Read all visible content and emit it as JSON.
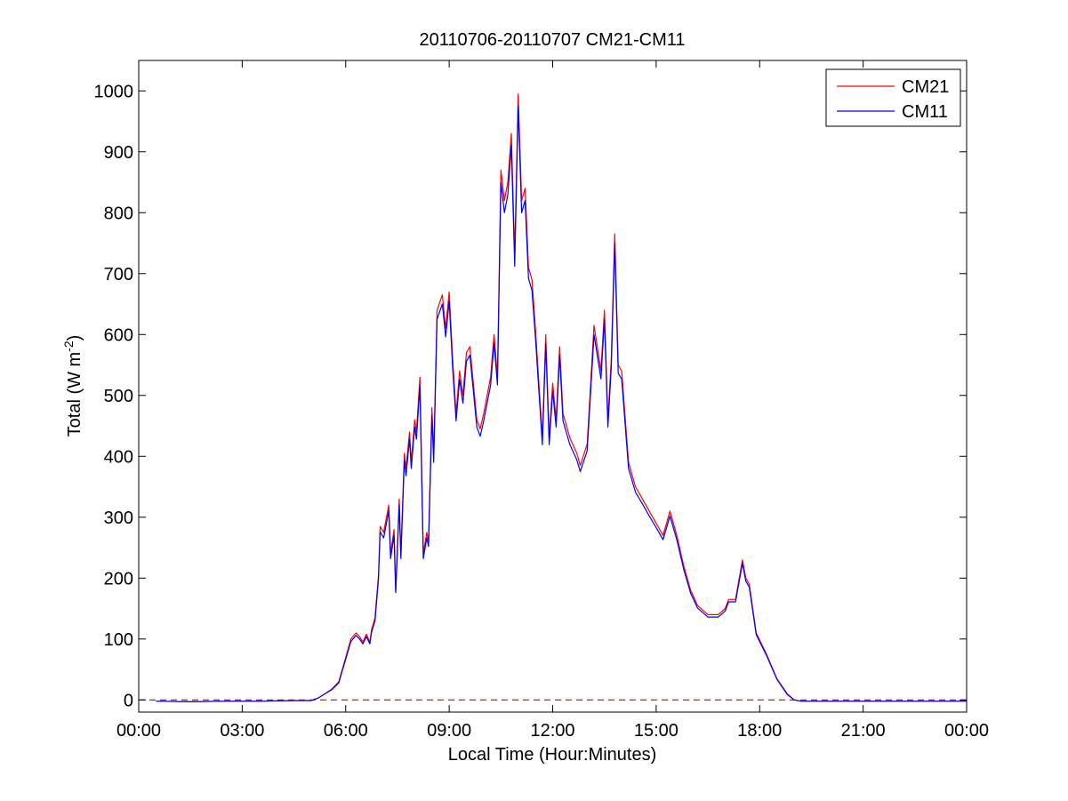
{
  "chart_data": {
    "type": "line",
    "title": "20110706-20110707 CM21-CM11",
    "xlabel": "Local Time (Hour:Minutes)",
    "ylabel": "Total (W m",
    "ylabel_superscript": "-2",
    "ylabel_suffix": ")",
    "xlim": [
      0,
      24
    ],
    "ylim": [
      -20,
      1050
    ],
    "x_unit": "hours",
    "x_ticks": [
      {
        "value": 0,
        "label": "00:00"
      },
      {
        "value": 3,
        "label": "03:00"
      },
      {
        "value": 6,
        "label": "06:00"
      },
      {
        "value": 9,
        "label": "09:00"
      },
      {
        "value": 12,
        "label": "12:00"
      },
      {
        "value": 15,
        "label": "15:00"
      },
      {
        "value": 18,
        "label": "18:00"
      },
      {
        "value": 21,
        "label": "21:00"
      },
      {
        "value": 24,
        "label": "00:00"
      }
    ],
    "y_ticks": [
      {
        "value": 0,
        "label": "0"
      },
      {
        "value": 100,
        "label": "100"
      },
      {
        "value": 200,
        "label": "200"
      },
      {
        "value": 300,
        "label": "300"
      },
      {
        "value": 400,
        "label": "400"
      },
      {
        "value": 500,
        "label": "500"
      },
      {
        "value": 600,
        "label": "600"
      },
      {
        "value": 700,
        "label": "700"
      },
      {
        "value": 800,
        "label": "800"
      },
      {
        "value": 900,
        "label": "900"
      },
      {
        "value": 1000,
        "label": "1000"
      }
    ],
    "grid": false,
    "legend_position": "top-right",
    "reference_line": {
      "y": 0,
      "style": "dashed",
      "color": "#cc0000"
    },
    "series": [
      {
        "name": "CM21",
        "color": "#ff0000",
        "points": [
          [
            0.5,
            -2
          ],
          [
            1.5,
            -3
          ],
          [
            2.5,
            -2
          ],
          [
            3.5,
            -2
          ],
          [
            4.5,
            -1
          ],
          [
            5.0,
            -1
          ],
          [
            5.2,
            3
          ],
          [
            5.4,
            10
          ],
          [
            5.6,
            18
          ],
          [
            5.8,
            30
          ],
          [
            5.9,
            50
          ],
          [
            6.0,
            70
          ],
          [
            6.15,
            100
          ],
          [
            6.3,
            110
          ],
          [
            6.4,
            104
          ],
          [
            6.5,
            95
          ],
          [
            6.6,
            108
          ],
          [
            6.7,
            95
          ],
          [
            6.75,
            115
          ],
          [
            6.85,
            135
          ],
          [
            6.95,
            205
          ],
          [
            7.0,
            285
          ],
          [
            7.1,
            275
          ],
          [
            7.25,
            320
          ],
          [
            7.3,
            240
          ],
          [
            7.4,
            280
          ],
          [
            7.45,
            180
          ],
          [
            7.55,
            330
          ],
          [
            7.6,
            240
          ],
          [
            7.7,
            405
          ],
          [
            7.75,
            380
          ],
          [
            7.85,
            440
          ],
          [
            7.9,
            390
          ],
          [
            8.0,
            460
          ],
          [
            8.05,
            440
          ],
          [
            8.15,
            530
          ],
          [
            8.25,
            240
          ],
          [
            8.35,
            275
          ],
          [
            8.4,
            260
          ],
          [
            8.5,
            480
          ],
          [
            8.55,
            400
          ],
          [
            8.65,
            640
          ],
          [
            8.8,
            665
          ],
          [
            8.9,
            610
          ],
          [
            9.0,
            670
          ],
          [
            9.1,
            560
          ],
          [
            9.2,
            470
          ],
          [
            9.3,
            540
          ],
          [
            9.4,
            500
          ],
          [
            9.5,
            570
          ],
          [
            9.6,
            580
          ],
          [
            9.7,
            520
          ],
          [
            9.8,
            460
          ],
          [
            9.9,
            445
          ],
          [
            10.0,
            470
          ],
          [
            10.2,
            530
          ],
          [
            10.3,
            600
          ],
          [
            10.4,
            530
          ],
          [
            10.5,
            870
          ],
          [
            10.6,
            820
          ],
          [
            10.7,
            850
          ],
          [
            10.8,
            930
          ],
          [
            10.9,
            730
          ],
          [
            11.0,
            995
          ],
          [
            11.1,
            820
          ],
          [
            11.2,
            840
          ],
          [
            11.3,
            710
          ],
          [
            11.4,
            690
          ],
          [
            11.5,
            610
          ],
          [
            11.6,
            520
          ],
          [
            11.7,
            430
          ],
          [
            11.8,
            600
          ],
          [
            11.9,
            430
          ],
          [
            12.0,
            520
          ],
          [
            12.1,
            460
          ],
          [
            12.2,
            580
          ],
          [
            12.3,
            470
          ],
          [
            12.5,
            430
          ],
          [
            12.7,
            405
          ],
          [
            12.8,
            385
          ],
          [
            13.0,
            420
          ],
          [
            13.2,
            615
          ],
          [
            13.4,
            540
          ],
          [
            13.5,
            640
          ],
          [
            13.6,
            460
          ],
          [
            13.7,
            560
          ],
          [
            13.8,
            765
          ],
          [
            13.9,
            550
          ],
          [
            14.0,
            540
          ],
          [
            14.2,
            390
          ],
          [
            14.4,
            350
          ],
          [
            14.6,
            330
          ],
          [
            14.8,
            310
          ],
          [
            15.0,
            290
          ],
          [
            15.2,
            270
          ],
          [
            15.4,
            310
          ],
          [
            15.6,
            270
          ],
          [
            15.8,
            220
          ],
          [
            16.0,
            180
          ],
          [
            16.2,
            155
          ],
          [
            16.5,
            140
          ],
          [
            16.8,
            140
          ],
          [
            17.0,
            150
          ],
          [
            17.1,
            165
          ],
          [
            17.3,
            165
          ],
          [
            17.5,
            230
          ],
          [
            17.6,
            200
          ],
          [
            17.7,
            190
          ],
          [
            17.9,
            110
          ],
          [
            18.2,
            75
          ],
          [
            18.5,
            35
          ],
          [
            18.8,
            10
          ],
          [
            19.0,
            0
          ],
          [
            19.2,
            -2
          ],
          [
            20.0,
            -2
          ],
          [
            21.0,
            -2
          ],
          [
            22.0,
            -2
          ],
          [
            23.0,
            -2
          ],
          [
            24.0,
            -2
          ]
        ]
      },
      {
        "name": "CM11",
        "color": "#0000ff",
        "points": [
          [
            0.5,
            -2
          ],
          [
            1.5,
            -3
          ],
          [
            2.5,
            -2
          ],
          [
            3.5,
            -2
          ],
          [
            4.5,
            -1
          ],
          [
            5.0,
            -1
          ],
          [
            5.2,
            3
          ],
          [
            5.4,
            10
          ],
          [
            5.6,
            17
          ],
          [
            5.8,
            28
          ],
          [
            5.9,
            48
          ],
          [
            6.0,
            67
          ],
          [
            6.15,
            96
          ],
          [
            6.3,
            106
          ],
          [
            6.4,
            100
          ],
          [
            6.5,
            92
          ],
          [
            6.6,
            104
          ],
          [
            6.7,
            92
          ],
          [
            6.75,
            111
          ],
          [
            6.85,
            130
          ],
          [
            6.95,
            198
          ],
          [
            7.0,
            276
          ],
          [
            7.1,
            266
          ],
          [
            7.25,
            310
          ],
          [
            7.3,
            232
          ],
          [
            7.4,
            270
          ],
          [
            7.45,
            176
          ],
          [
            7.55,
            320
          ],
          [
            7.6,
            232
          ],
          [
            7.7,
            393
          ],
          [
            7.75,
            368
          ],
          [
            7.85,
            428
          ],
          [
            7.9,
            380
          ],
          [
            8.0,
            448
          ],
          [
            8.05,
            428
          ],
          [
            8.15,
            515
          ],
          [
            8.25,
            232
          ],
          [
            8.35,
            266
          ],
          [
            8.4,
            252
          ],
          [
            8.5,
            467
          ],
          [
            8.55,
            390
          ],
          [
            8.65,
            625
          ],
          [
            8.8,
            650
          ],
          [
            8.9,
            596
          ],
          [
            9.0,
            655
          ],
          [
            9.1,
            546
          ],
          [
            9.2,
            458
          ],
          [
            9.3,
            526
          ],
          [
            9.4,
            487
          ],
          [
            9.5,
            556
          ],
          [
            9.6,
            566
          ],
          [
            9.7,
            507
          ],
          [
            9.8,
            448
          ],
          [
            9.9,
            433
          ],
          [
            10.0,
            458
          ],
          [
            10.2,
            517
          ],
          [
            10.3,
            586
          ],
          [
            10.4,
            517
          ],
          [
            10.5,
            850
          ],
          [
            10.6,
            800
          ],
          [
            10.7,
            830
          ],
          [
            10.8,
            910
          ],
          [
            10.9,
            712
          ],
          [
            11.0,
            975
          ],
          [
            11.1,
            800
          ],
          [
            11.2,
            820
          ],
          [
            11.3,
            692
          ],
          [
            11.4,
            673
          ],
          [
            11.5,
            595
          ],
          [
            11.6,
            507
          ],
          [
            11.7,
            419
          ],
          [
            11.8,
            585
          ],
          [
            11.9,
            419
          ],
          [
            12.0,
            507
          ],
          [
            12.1,
            448
          ],
          [
            12.2,
            566
          ],
          [
            12.3,
            458
          ],
          [
            12.5,
            419
          ],
          [
            12.7,
            394
          ],
          [
            12.8,
            375
          ],
          [
            13.0,
            409
          ],
          [
            13.2,
            600
          ],
          [
            13.4,
            527
          ],
          [
            13.5,
            625
          ],
          [
            13.6,
            448
          ],
          [
            13.7,
            546
          ],
          [
            13.8,
            750
          ],
          [
            13.9,
            536
          ],
          [
            14.0,
            527
          ],
          [
            14.2,
            380
          ],
          [
            14.4,
            341
          ],
          [
            14.6,
            322
          ],
          [
            14.8,
            302
          ],
          [
            15.0,
            283
          ],
          [
            15.2,
            263
          ],
          [
            15.4,
            302
          ],
          [
            15.6,
            263
          ],
          [
            15.8,
            214
          ],
          [
            16.0,
            175
          ],
          [
            16.2,
            151
          ],
          [
            16.5,
            136
          ],
          [
            16.8,
            136
          ],
          [
            17.0,
            146
          ],
          [
            17.1,
            161
          ],
          [
            17.3,
            161
          ],
          [
            17.5,
            224
          ],
          [
            17.6,
            195
          ],
          [
            17.7,
            185
          ],
          [
            17.9,
            107
          ],
          [
            18.2,
            73
          ],
          [
            18.5,
            34
          ],
          [
            18.8,
            9
          ],
          [
            19.0,
            0
          ],
          [
            19.2,
            -2
          ],
          [
            20.0,
            -2
          ],
          [
            21.0,
            -2
          ],
          [
            22.0,
            -2
          ],
          [
            23.0,
            -2
          ],
          [
            24.0,
            -2
          ]
        ]
      }
    ]
  }
}
